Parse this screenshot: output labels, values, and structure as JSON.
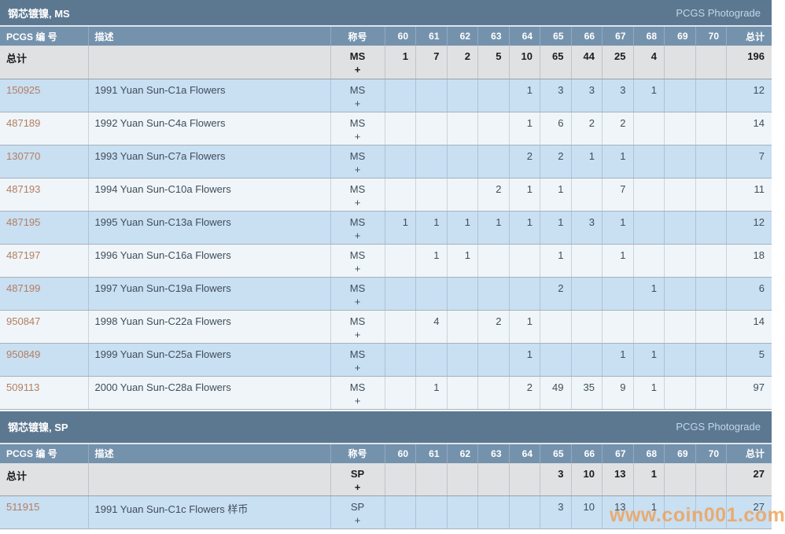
{
  "columns": {
    "id_label": "PCGS 编 号",
    "desc_label": "描述",
    "designation_label": "称号",
    "grade_labels": [
      "60",
      "61",
      "62",
      "63",
      "64",
      "65",
      "66",
      "67",
      "68",
      "69",
      "70"
    ],
    "total_label": "总计"
  },
  "tables": [
    {
      "title": "钢芯镀镍, MS",
      "photograde_label": "PCGS Photograde",
      "total_row": {
        "label": "总计",
        "desc": "",
        "designation": "MS",
        "plus": "+",
        "grades": [
          "1",
          "7",
          "2",
          "5",
          "10",
          "65",
          "44",
          "25",
          "4",
          "",
          ""
        ],
        "total": "196"
      },
      "rows": [
        {
          "id": "150925",
          "desc": "1991 Yuan Sun-C1a Flowers",
          "designation": "MS",
          "plus": "+",
          "grades": [
            "",
            "",
            "",
            "",
            "1",
            "3",
            "3",
            "3",
            "1",
            "",
            ""
          ],
          "total": "12"
        },
        {
          "id": "487189",
          "desc": "1992 Yuan Sun-C4a Flowers",
          "designation": "MS",
          "plus": "+",
          "grades": [
            "",
            "",
            "",
            "",
            "1",
            "6",
            "2",
            "2",
            "",
            "",
            ""
          ],
          "total": "14"
        },
        {
          "id": "130770",
          "desc": "1993 Yuan Sun-C7a Flowers",
          "designation": "MS",
          "plus": "+",
          "grades": [
            "",
            "",
            "",
            "",
            "2",
            "2",
            "1",
            "1",
            "",
            "",
            ""
          ],
          "total": "7"
        },
        {
          "id": "487193",
          "desc": "1994 Yuan Sun-C10a Flowers",
          "designation": "MS",
          "plus": "+",
          "grades": [
            "",
            "",
            "",
            "2",
            "1",
            "1",
            "",
            "7",
            "",
            "",
            ""
          ],
          "total": "11"
        },
        {
          "id": "487195",
          "desc": "1995 Yuan Sun-C13a Flowers",
          "designation": "MS",
          "plus": "+",
          "grades": [
            "1",
            "1",
            "1",
            "1",
            "1",
            "1",
            "3",
            "1",
            "",
            "",
            ""
          ],
          "total": "12"
        },
        {
          "id": "487197",
          "desc": "1996 Yuan Sun-C16a Flowers",
          "designation": "MS",
          "plus": "+",
          "grades": [
            "",
            "1",
            "1",
            "",
            "",
            "1",
            "",
            "1",
            "",
            "",
            ""
          ],
          "total": "18"
        },
        {
          "id": "487199",
          "desc": "1997 Yuan Sun-C19a Flowers",
          "designation": "MS",
          "plus": "+",
          "grades": [
            "",
            "",
            "",
            "",
            "",
            "2",
            "",
            "",
            "1",
            "",
            ""
          ],
          "total": "6"
        },
        {
          "id": "950847",
          "desc": "1998 Yuan Sun-C22a Flowers",
          "designation": "MS",
          "plus": "+",
          "grades": [
            "",
            "4",
            "",
            "2",
            "1",
            "",
            "",
            "",
            "",
            "",
            ""
          ],
          "total": "14"
        },
        {
          "id": "950849",
          "desc": "1999 Yuan Sun-C25a Flowers",
          "designation": "MS",
          "plus": "+",
          "grades": [
            "",
            "",
            "",
            "",
            "1",
            "",
            "",
            "1",
            "1",
            "",
            ""
          ],
          "total": "5"
        },
        {
          "id": "509113",
          "desc": "2000 Yuan Sun-C28a Flowers",
          "designation": "MS",
          "plus": "+",
          "grades": [
            "",
            "1",
            "",
            "",
            "2",
            "49",
            "35",
            "9",
            "1",
            "",
            ""
          ],
          "total": "97"
        }
      ]
    },
    {
      "title": "钢芯镀镍, SP",
      "photograde_label": "PCGS Photograde",
      "total_row": {
        "label": "总计",
        "desc": "",
        "designation": "SP",
        "plus": "+",
        "grades": [
          "",
          "",
          "",
          "",
          "",
          "3",
          "10",
          "13",
          "1",
          "",
          ""
        ],
        "total": "27"
      },
      "rows": [
        {
          "id": "511915",
          "desc": "1991 Yuan Sun-C1c Flowers 样币",
          "designation": "SP",
          "plus": "+",
          "grades": [
            "",
            "",
            "",
            "",
            "",
            "3",
            "10",
            "13",
            "1",
            "",
            ""
          ],
          "total": "27"
        }
      ]
    }
  ],
  "watermark": "www.coin001.com",
  "colors": {
    "title_band": "#5c7891",
    "column_header": "#7592ad",
    "total_row_bg": "#e0e1e2",
    "row_blue": "#c9dff2",
    "row_lite": "#f0f5f9",
    "pcgs_number_link": "#b37e60",
    "photograde_link": "#c3d6e8",
    "watermark_orange": "#efa057"
  }
}
